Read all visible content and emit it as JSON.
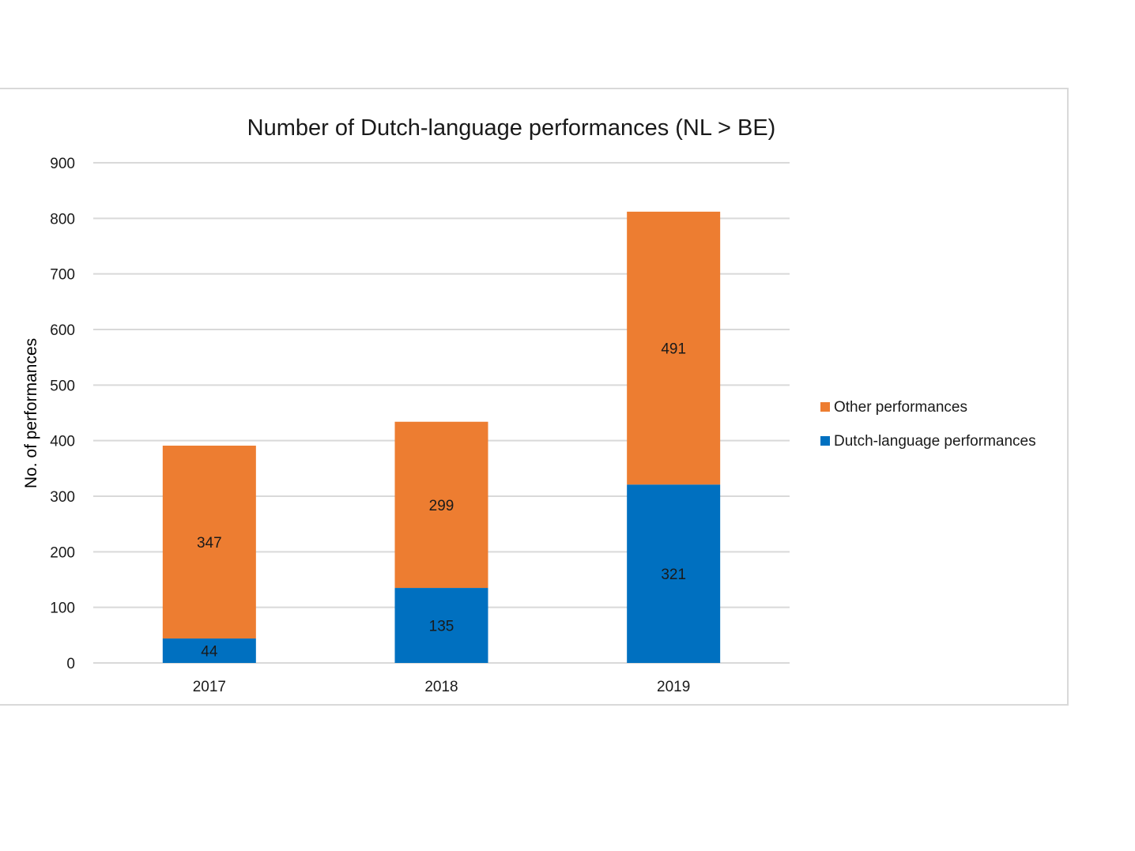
{
  "chart_data": {
    "type": "bar",
    "stacked": true,
    "title": "Number of Dutch-language performances  (NL > BE)",
    "xlabel": "",
    "ylabel": "No. of performances",
    "categories": [
      "2017",
      "2018",
      "2019"
    ],
    "ylim": [
      0,
      900
    ],
    "yticks": [
      0,
      100,
      200,
      300,
      400,
      500,
      600,
      700,
      800,
      900
    ],
    "grid": true,
    "legend_position": "right",
    "series": [
      {
        "name": "Dutch-language performances",
        "color": "#0070c0",
        "values": [
          44,
          135,
          321
        ]
      },
      {
        "name": "Other performances",
        "color": "#ed7d31",
        "values": [
          347,
          299,
          491
        ]
      }
    ],
    "legend_order": [
      1,
      0
    ]
  }
}
